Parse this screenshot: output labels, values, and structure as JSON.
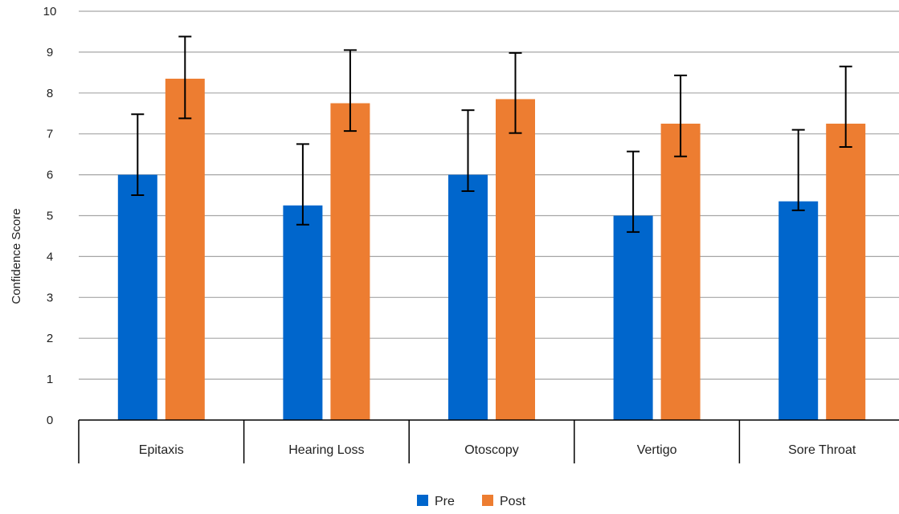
{
  "chart_data": {
    "type": "bar",
    "title": "",
    "xlabel": "",
    "ylabel": "Confidence Score",
    "ylim": [
      0,
      10
    ],
    "yticks": [
      0,
      1,
      2,
      3,
      4,
      5,
      6,
      7,
      8,
      9,
      10
    ],
    "grid": true,
    "legend_position": "bottom",
    "categories": [
      "Epitaxis",
      "Hearing Loss",
      "Otoscopy",
      "Vertigo",
      "Sore Throat"
    ],
    "series": [
      {
        "name": "Pre",
        "color": "#0066cc",
        "values": [
          6.0,
          5.25,
          6.0,
          5.0,
          5.35
        ],
        "error_low": [
          5.5,
          4.78,
          5.6,
          4.6,
          5.13
        ],
        "error_high": [
          7.48,
          6.75,
          7.58,
          6.57,
          7.1
        ]
      },
      {
        "name": "Post",
        "color": "#ed7d31",
        "values": [
          8.35,
          7.75,
          7.85,
          7.25,
          7.25
        ],
        "error_low": [
          7.38,
          7.07,
          7.02,
          6.45,
          6.68
        ],
        "error_high": [
          9.38,
          9.05,
          8.98,
          8.43,
          8.65
        ]
      }
    ]
  }
}
